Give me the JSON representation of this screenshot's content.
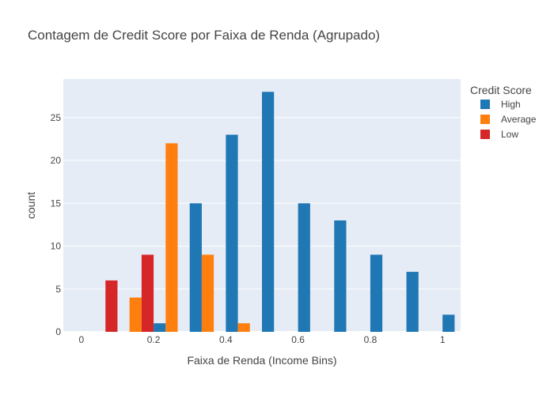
{
  "chart_data": {
    "type": "bar",
    "title": "Contagem de Credit Score por Faixa de Renda (Agrupado)",
    "xlabel": "Faixa de Renda (Income Bins)",
    "ylabel": "count",
    "legend_title": "Credit Score",
    "legend_position": "top-right",
    "xlim": [
      -0.05,
      1.05
    ],
    "ylim": [
      0,
      29.5
    ],
    "x_ticks": [
      0,
      0.2,
      0.4,
      0.6,
      0.8,
      1
    ],
    "x_tick_labels": [
      "0",
      "0.2",
      "0.4",
      "0.6",
      "0.8",
      "1"
    ],
    "y_ticks": [
      0,
      5,
      10,
      15,
      20,
      25
    ],
    "y_tick_labels": [
      "0",
      "5",
      "10",
      "15",
      "20",
      "25"
    ],
    "grid": true,
    "bin_width": 0.1,
    "series": [
      {
        "name": "High",
        "color": "#1f77b4",
        "points": [
          {
            "x": 0.2,
            "y": 1
          },
          {
            "x": 0.3,
            "y": 15
          },
          {
            "x": 0.4,
            "y": 23
          },
          {
            "x": 0.5,
            "y": 28
          },
          {
            "x": 0.6,
            "y": 15
          },
          {
            "x": 0.7,
            "y": 13
          },
          {
            "x": 0.8,
            "y": 9
          },
          {
            "x": 0.9,
            "y": 7
          },
          {
            "x": 1.0,
            "y": 2
          }
        ]
      },
      {
        "name": "Average",
        "color": "#ff7f0e",
        "points": [
          {
            "x": 0.1,
            "y": 4
          },
          {
            "x": 0.2,
            "y": 22
          },
          {
            "x": 0.3,
            "y": 9
          },
          {
            "x": 0.4,
            "y": 1
          }
        ]
      },
      {
        "name": "Low",
        "color": "#d62728",
        "points": [
          {
            "x": 0.0,
            "y": 6
          },
          {
            "x": 0.1,
            "y": 9
          }
        ]
      }
    ]
  }
}
